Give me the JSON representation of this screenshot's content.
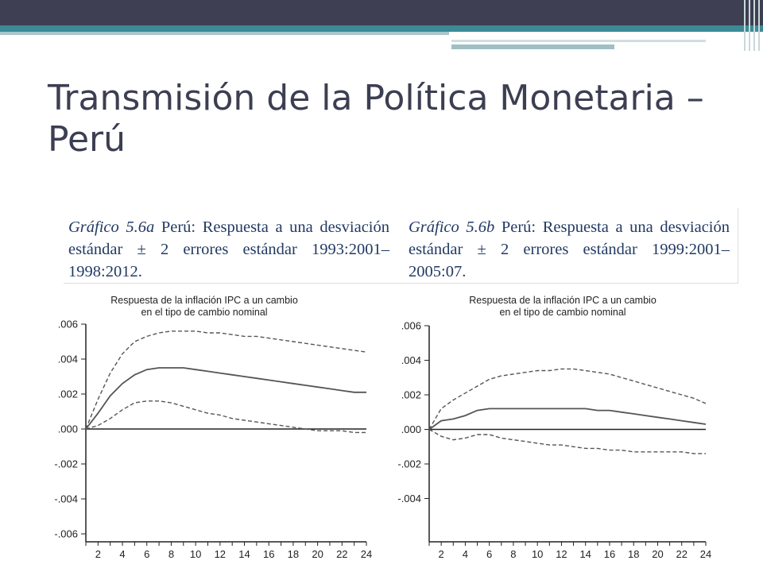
{
  "slide": {
    "title": "Transmisión de la Política Monetaria – Perú"
  },
  "captions": [
    {
      "label": "Gráfico 5.6a",
      "text": "Perú: Respuesta a una desviación estándar ± 2 errores estándar 1993:2001–1998:2012."
    },
    {
      "label": "Gráfico 5.6b",
      "text": "Perú: Respuesta a una desviación estándar ± 2 errores estándar 1999:2001–2005:07."
    }
  ],
  "chart_data": [
    {
      "type": "line",
      "title": "Respuesta de la inflación IPC a un cambio en el tipo de cambio nominal",
      "x": [
        1,
        2,
        3,
        4,
        5,
        6,
        7,
        8,
        9,
        10,
        11,
        12,
        13,
        14,
        15,
        16,
        17,
        18,
        19,
        20,
        21,
        22,
        23,
        24
      ],
      "xticks": [
        2,
        4,
        6,
        8,
        10,
        12,
        14,
        16,
        18,
        20,
        22,
        24
      ],
      "yticks": [
        ".006",
        ".004",
        ".002",
        ".000",
        "-.002",
        "-.004",
        "-.006"
      ],
      "ylim": [
        -0.006,
        0.006
      ],
      "series": [
        {
          "style": "solid",
          "values": [
            0.0,
            0.0009,
            0.0019,
            0.0026,
            0.0031,
            0.0034,
            0.0035,
            0.0035,
            0.0035,
            0.0034,
            0.0033,
            0.0032,
            0.0031,
            0.003,
            0.0029,
            0.0028,
            0.0027,
            0.0026,
            0.0025,
            0.0024,
            0.0023,
            0.0022,
            0.0021,
            0.0021
          ]
        },
        {
          "style": "dashed",
          "values": [
            0.0,
            0.0017,
            0.0032,
            0.0043,
            0.005,
            0.0053,
            0.0055,
            0.0056,
            0.0056,
            0.0056,
            0.0055,
            0.0055,
            0.0054,
            0.0053,
            0.0053,
            0.0052,
            0.0051,
            0.005,
            0.0049,
            0.0048,
            0.0047,
            0.0046,
            0.0045,
            0.0044
          ]
        },
        {
          "style": "dashed",
          "values": [
            0.0,
            0.0002,
            0.0006,
            0.0011,
            0.0015,
            0.0016,
            0.0016,
            0.0015,
            0.0013,
            0.0011,
            0.0009,
            0.0008,
            0.0006,
            0.0005,
            0.0004,
            0.0003,
            0.0002,
            0.0001,
            0.0,
            -0.0001,
            -0.0001,
            -0.0001,
            -0.0002,
            -0.0002
          ]
        }
      ]
    },
    {
      "type": "line",
      "title": "Respuesta de la inflación IPC a un cambio en el tipo de cambio nominal",
      "x": [
        1,
        2,
        3,
        4,
        5,
        6,
        7,
        8,
        9,
        10,
        11,
        12,
        13,
        14,
        15,
        16,
        17,
        18,
        19,
        20,
        21,
        22,
        23,
        24
      ],
      "xticks": [
        2,
        4,
        6,
        8,
        10,
        12,
        14,
        16,
        18,
        20,
        22,
        24
      ],
      "yticks": [
        ".006",
        ".004",
        ".002",
        ".000",
        "-.002",
        "-.004"
      ],
      "ylim": [
        -0.006,
        0.006
      ],
      "series": [
        {
          "style": "solid",
          "values": [
            0.0,
            0.0005,
            0.0006,
            0.0008,
            0.0011,
            0.0012,
            0.0012,
            0.0012,
            0.0012,
            0.0012,
            0.0012,
            0.0012,
            0.0012,
            0.0012,
            0.0011,
            0.0011,
            0.001,
            0.0009,
            0.0008,
            0.0007,
            0.0006,
            0.0005,
            0.0004,
            0.0003
          ]
        },
        {
          "style": "dashed",
          "values": [
            0.0,
            0.0012,
            0.0017,
            0.0021,
            0.0025,
            0.0029,
            0.0031,
            0.0032,
            0.0033,
            0.0034,
            0.0034,
            0.0035,
            0.0035,
            0.0034,
            0.0033,
            0.0032,
            0.003,
            0.0028,
            0.0026,
            0.0024,
            0.0022,
            0.002,
            0.0018,
            0.0015
          ]
        },
        {
          "style": "dashed",
          "values": [
            0.0,
            -0.0004,
            -0.0006,
            -0.0005,
            -0.0003,
            -0.0003,
            -0.0005,
            -0.0006,
            -0.0007,
            -0.0008,
            -0.0009,
            -0.0009,
            -0.001,
            -0.0011,
            -0.0011,
            -0.0012,
            -0.0012,
            -0.0013,
            -0.0013,
            -0.0013,
            -0.0013,
            -0.0013,
            -0.0014,
            -0.0014
          ]
        }
      ]
    }
  ]
}
